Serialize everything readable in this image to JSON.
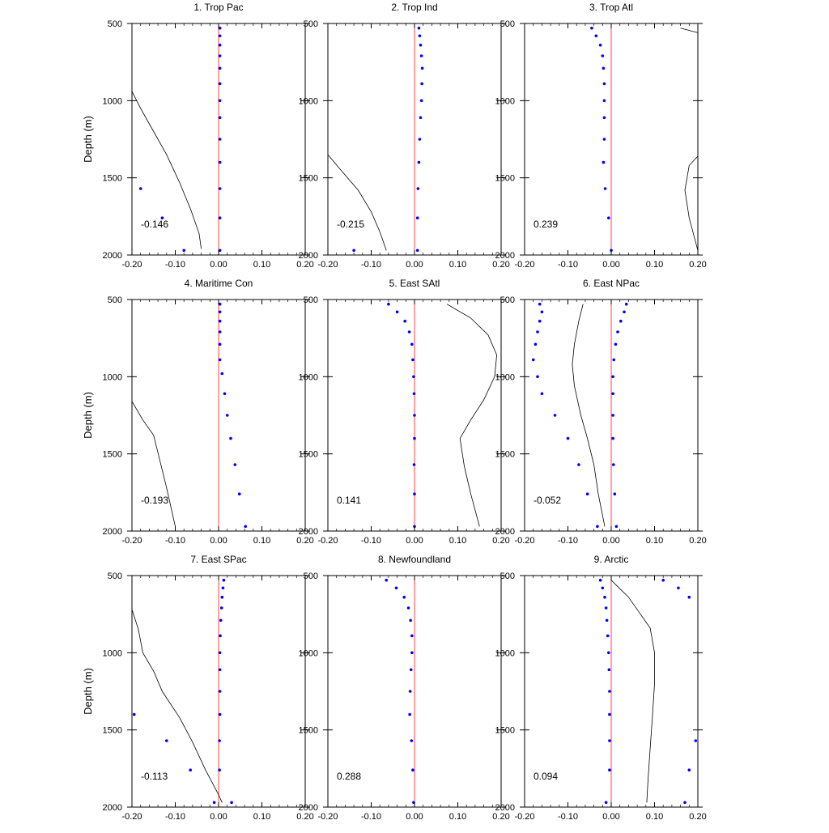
{
  "chart_data": {
    "type": "small-multiples",
    "description_free": true,
    "shared": {
      "x_ticks": [
        "-0.20",
        "-0.10",
        "0.00",
        "0.10",
        "0.20"
      ],
      "x_tick_values": [
        -0.2,
        -0.1,
        0.0,
        0.1,
        0.2
      ],
      "y_ticks": [
        "500",
        "1000",
        "1500",
        "2000"
      ],
      "y_tick_values": [
        500,
        1000,
        1500,
        2000
      ],
      "xlim": [
        -0.2,
        0.2
      ],
      "ylim": [
        500,
        2000
      ],
      "y_inverted": true,
      "ylabel": "Depth (m)",
      "colors": {
        "curve": "#000000",
        "zero_line": "#ff4444",
        "points": "#0000ff"
      }
    },
    "panels": [
      {
        "title": "1. Trop Pac",
        "value_label": "-0.146",
        "curve": [
          [
            -0.2,
            940
          ],
          [
            -0.18,
            1050
          ],
          [
            -0.15,
            1200
          ],
          [
            -0.12,
            1350
          ],
          [
            -0.09,
            1530
          ],
          [
            -0.065,
            1700
          ],
          [
            -0.045,
            1860
          ],
          [
            -0.04,
            1960
          ]
        ],
        "points": [
          [
            0.003,
            530
          ],
          [
            0.003,
            580
          ],
          [
            0.003,
            640
          ],
          [
            0.003,
            710
          ],
          [
            0.003,
            790
          ],
          [
            0.003,
            890
          ],
          [
            0.003,
            1000
          ],
          [
            0.003,
            1110
          ],
          [
            0.003,
            1250
          ],
          [
            0.003,
            1400
          ],
          [
            -0.18,
            1570
          ],
          [
            -0.13,
            1760
          ],
          [
            -0.08,
            1970
          ]
        ],
        "points_extra": [
          [
            0.003,
            1570
          ],
          [
            0.003,
            1760
          ],
          [
            0.003,
            1970
          ]
        ]
      },
      {
        "title": "2. Trop Ind",
        "value_label": "-0.215",
        "curve": [
          [
            -0.2,
            1350
          ],
          [
            -0.17,
            1450
          ],
          [
            -0.13,
            1580
          ],
          [
            -0.1,
            1720
          ],
          [
            -0.08,
            1850
          ],
          [
            -0.065,
            1970
          ]
        ],
        "points": [
          [
            0.01,
            530
          ],
          [
            0.012,
            580
          ],
          [
            0.014,
            640
          ],
          [
            0.016,
            710
          ],
          [
            0.018,
            790
          ],
          [
            0.017,
            890
          ],
          [
            0.016,
            1000
          ],
          [
            0.014,
            1110
          ],
          [
            0.012,
            1250
          ],
          [
            0.01,
            1400
          ],
          [
            0.008,
            1570
          ],
          [
            0.007,
            1760
          ],
          [
            -0.14,
            1970
          ],
          [
            0.007,
            1970
          ]
        ]
      },
      {
        "title": "3. Trop Atl",
        "value_label": "0.239",
        "curve_segments": [
          [
            [
              0.16,
              530
            ],
            [
              0.2,
              560
            ]
          ],
          [
            [
              0.2,
              1360
            ],
            [
              0.18,
              1420
            ],
            [
              0.17,
              1580
            ],
            [
              0.18,
              1760
            ],
            [
              0.2,
              1970
            ]
          ]
        ],
        "points": [
          [
            -0.045,
            530
          ],
          [
            -0.035,
            580
          ],
          [
            -0.025,
            640
          ],
          [
            -0.02,
            710
          ],
          [
            -0.018,
            790
          ],
          [
            -0.016,
            890
          ],
          [
            -0.016,
            1000
          ],
          [
            -0.016,
            1110
          ],
          [
            -0.016,
            1250
          ],
          [
            -0.018,
            1400
          ],
          [
            -0.014,
            1570
          ],
          [
            -0.006,
            1760
          ],
          [
            0.0,
            1970
          ]
        ]
      },
      {
        "title": "4. Maritime Con",
        "value_label": "-0.193",
        "curve": [
          [
            -0.2,
            1160
          ],
          [
            -0.175,
            1280
          ],
          [
            -0.15,
            1380
          ],
          [
            -0.135,
            1550
          ],
          [
            -0.12,
            1720
          ],
          [
            -0.1,
            1970
          ]
        ],
        "points": [
          [
            0.003,
            530
          ],
          [
            0.003,
            580
          ],
          [
            0.003,
            640
          ],
          [
            0.003,
            710
          ],
          [
            0.003,
            790
          ],
          [
            0.003,
            890
          ],
          [
            0.008,
            980
          ],
          [
            0.014,
            1110
          ],
          [
            0.02,
            1250
          ],
          [
            0.028,
            1400
          ],
          [
            0.038,
            1570
          ],
          [
            0.048,
            1760
          ],
          [
            0.062,
            1970
          ]
        ]
      },
      {
        "title": "5. East SAtl",
        "value_label": "0.141",
        "curve": [
          [
            0.075,
            530
          ],
          [
            0.13,
            620
          ],
          [
            0.17,
            730
          ],
          [
            0.19,
            860
          ],
          [
            0.185,
            1000
          ],
          [
            0.16,
            1150
          ],
          [
            0.13,
            1280
          ],
          [
            0.105,
            1400
          ],
          [
            0.115,
            1580
          ],
          [
            0.13,
            1760
          ],
          [
            0.15,
            1970
          ]
        ],
        "points": [
          [
            -0.06,
            530
          ],
          [
            -0.04,
            580
          ],
          [
            -0.022,
            640
          ],
          [
            -0.012,
            710
          ],
          [
            -0.006,
            790
          ],
          [
            -0.004,
            890
          ],
          [
            -0.002,
            1000
          ],
          [
            -0.001,
            1110
          ],
          [
            0.0,
            1250
          ],
          [
            0.0,
            1400
          ],
          [
            -0.001,
            1570
          ],
          [
            0.0,
            1760
          ],
          [
            0.0,
            1970
          ]
        ]
      },
      {
        "title": "6. East NPac",
        "value_label": "-0.052",
        "curve": [
          [
            -0.065,
            530
          ],
          [
            -0.075,
            640
          ],
          [
            -0.085,
            790
          ],
          [
            -0.09,
            920
          ],
          [
            -0.085,
            1060
          ],
          [
            -0.07,
            1250
          ],
          [
            -0.055,
            1400
          ],
          [
            -0.04,
            1570
          ],
          [
            -0.03,
            1760
          ],
          [
            -0.015,
            1970
          ]
        ],
        "points_left": [
          [
            -0.165,
            530
          ],
          [
            -0.16,
            580
          ],
          [
            -0.165,
            640
          ],
          [
            -0.17,
            710
          ],
          [
            -0.175,
            790
          ],
          [
            -0.18,
            890
          ],
          [
            -0.17,
            1000
          ],
          [
            -0.16,
            1110
          ],
          [
            -0.13,
            1250
          ],
          [
            -0.1,
            1400
          ],
          [
            -0.075,
            1570
          ],
          [
            -0.055,
            1760
          ],
          [
            -0.032,
            1970
          ]
        ],
        "points": [
          [
            0.035,
            530
          ],
          [
            0.03,
            580
          ],
          [
            0.022,
            640
          ],
          [
            0.015,
            710
          ],
          [
            0.01,
            790
          ],
          [
            0.006,
            890
          ],
          [
            0.004,
            1000
          ],
          [
            0.004,
            1110
          ],
          [
            0.004,
            1250
          ],
          [
            0.004,
            1400
          ],
          [
            0.005,
            1570
          ],
          [
            0.008,
            1760
          ],
          [
            0.012,
            1970
          ]
        ]
      },
      {
        "title": "7. East SPac",
        "value_label": "-0.113",
        "curve": [
          [
            -0.2,
            720
          ],
          [
            -0.185,
            850
          ],
          [
            -0.175,
            1000
          ],
          [
            -0.15,
            1120
          ],
          [
            -0.13,
            1250
          ],
          [
            -0.09,
            1420
          ],
          [
            -0.06,
            1580
          ],
          [
            -0.03,
            1760
          ],
          [
            0.0,
            1920
          ],
          [
            0.008,
            1970
          ]
        ],
        "points": [
          [
            0.012,
            530
          ],
          [
            0.01,
            580
          ],
          [
            0.008,
            640
          ],
          [
            0.007,
            710
          ],
          [
            0.005,
            790
          ],
          [
            0.004,
            890
          ],
          [
            0.003,
            1000
          ],
          [
            0.003,
            1110
          ],
          [
            0.003,
            1250
          ],
          [
            0.003,
            1400
          ],
          [
            0.002,
            1570
          ],
          [
            0.002,
            1760
          ],
          [
            0.03,
            1970
          ]
        ],
        "points_extra": [
          [
            -0.195,
            1400
          ],
          [
            -0.12,
            1570
          ],
          [
            -0.065,
            1760
          ],
          [
            -0.01,
            1970
          ]
        ]
      },
      {
        "title": "8. Newfoundland",
        "value_label": "0.288",
        "curve": [],
        "points": [
          [
            -0.065,
            530
          ],
          [
            -0.042,
            580
          ],
          [
            -0.024,
            640
          ],
          [
            -0.014,
            710
          ],
          [
            -0.009,
            790
          ],
          [
            -0.006,
            890
          ],
          [
            -0.006,
            1000
          ],
          [
            -0.008,
            1110
          ],
          [
            -0.01,
            1250
          ],
          [
            -0.011,
            1400
          ],
          [
            -0.007,
            1570
          ],
          [
            -0.004,
            1760
          ],
          [
            -0.002,
            1970
          ]
        ]
      },
      {
        "title": "9. Arctic",
        "value_label": "0.094",
        "curve": [
          [
            0.0,
            530
          ],
          [
            0.04,
            640
          ],
          [
            0.065,
            740
          ],
          [
            0.09,
            840
          ],
          [
            0.1,
            1000
          ],
          [
            0.1,
            1200
          ],
          [
            0.095,
            1420
          ],
          [
            0.09,
            1620
          ],
          [
            0.085,
            1820
          ],
          [
            0.082,
            1970
          ]
        ],
        "points": [
          [
            -0.025,
            530
          ],
          [
            -0.02,
            580
          ],
          [
            -0.015,
            640
          ],
          [
            -0.012,
            710
          ],
          [
            -0.01,
            790
          ],
          [
            -0.008,
            890
          ],
          [
            -0.006,
            1000
          ],
          [
            -0.005,
            1110
          ],
          [
            -0.004,
            1250
          ],
          [
            -0.004,
            1400
          ],
          [
            -0.004,
            1570
          ],
          [
            -0.004,
            1760
          ],
          [
            -0.012,
            1970
          ]
        ],
        "points_extra": [
          [
            0.12,
            530
          ],
          [
            0.155,
            580
          ],
          [
            0.18,
            640
          ],
          [
            0.195,
            1570
          ],
          [
            0.18,
            1760
          ],
          [
            0.17,
            1970
          ]
        ]
      }
    ]
  }
}
